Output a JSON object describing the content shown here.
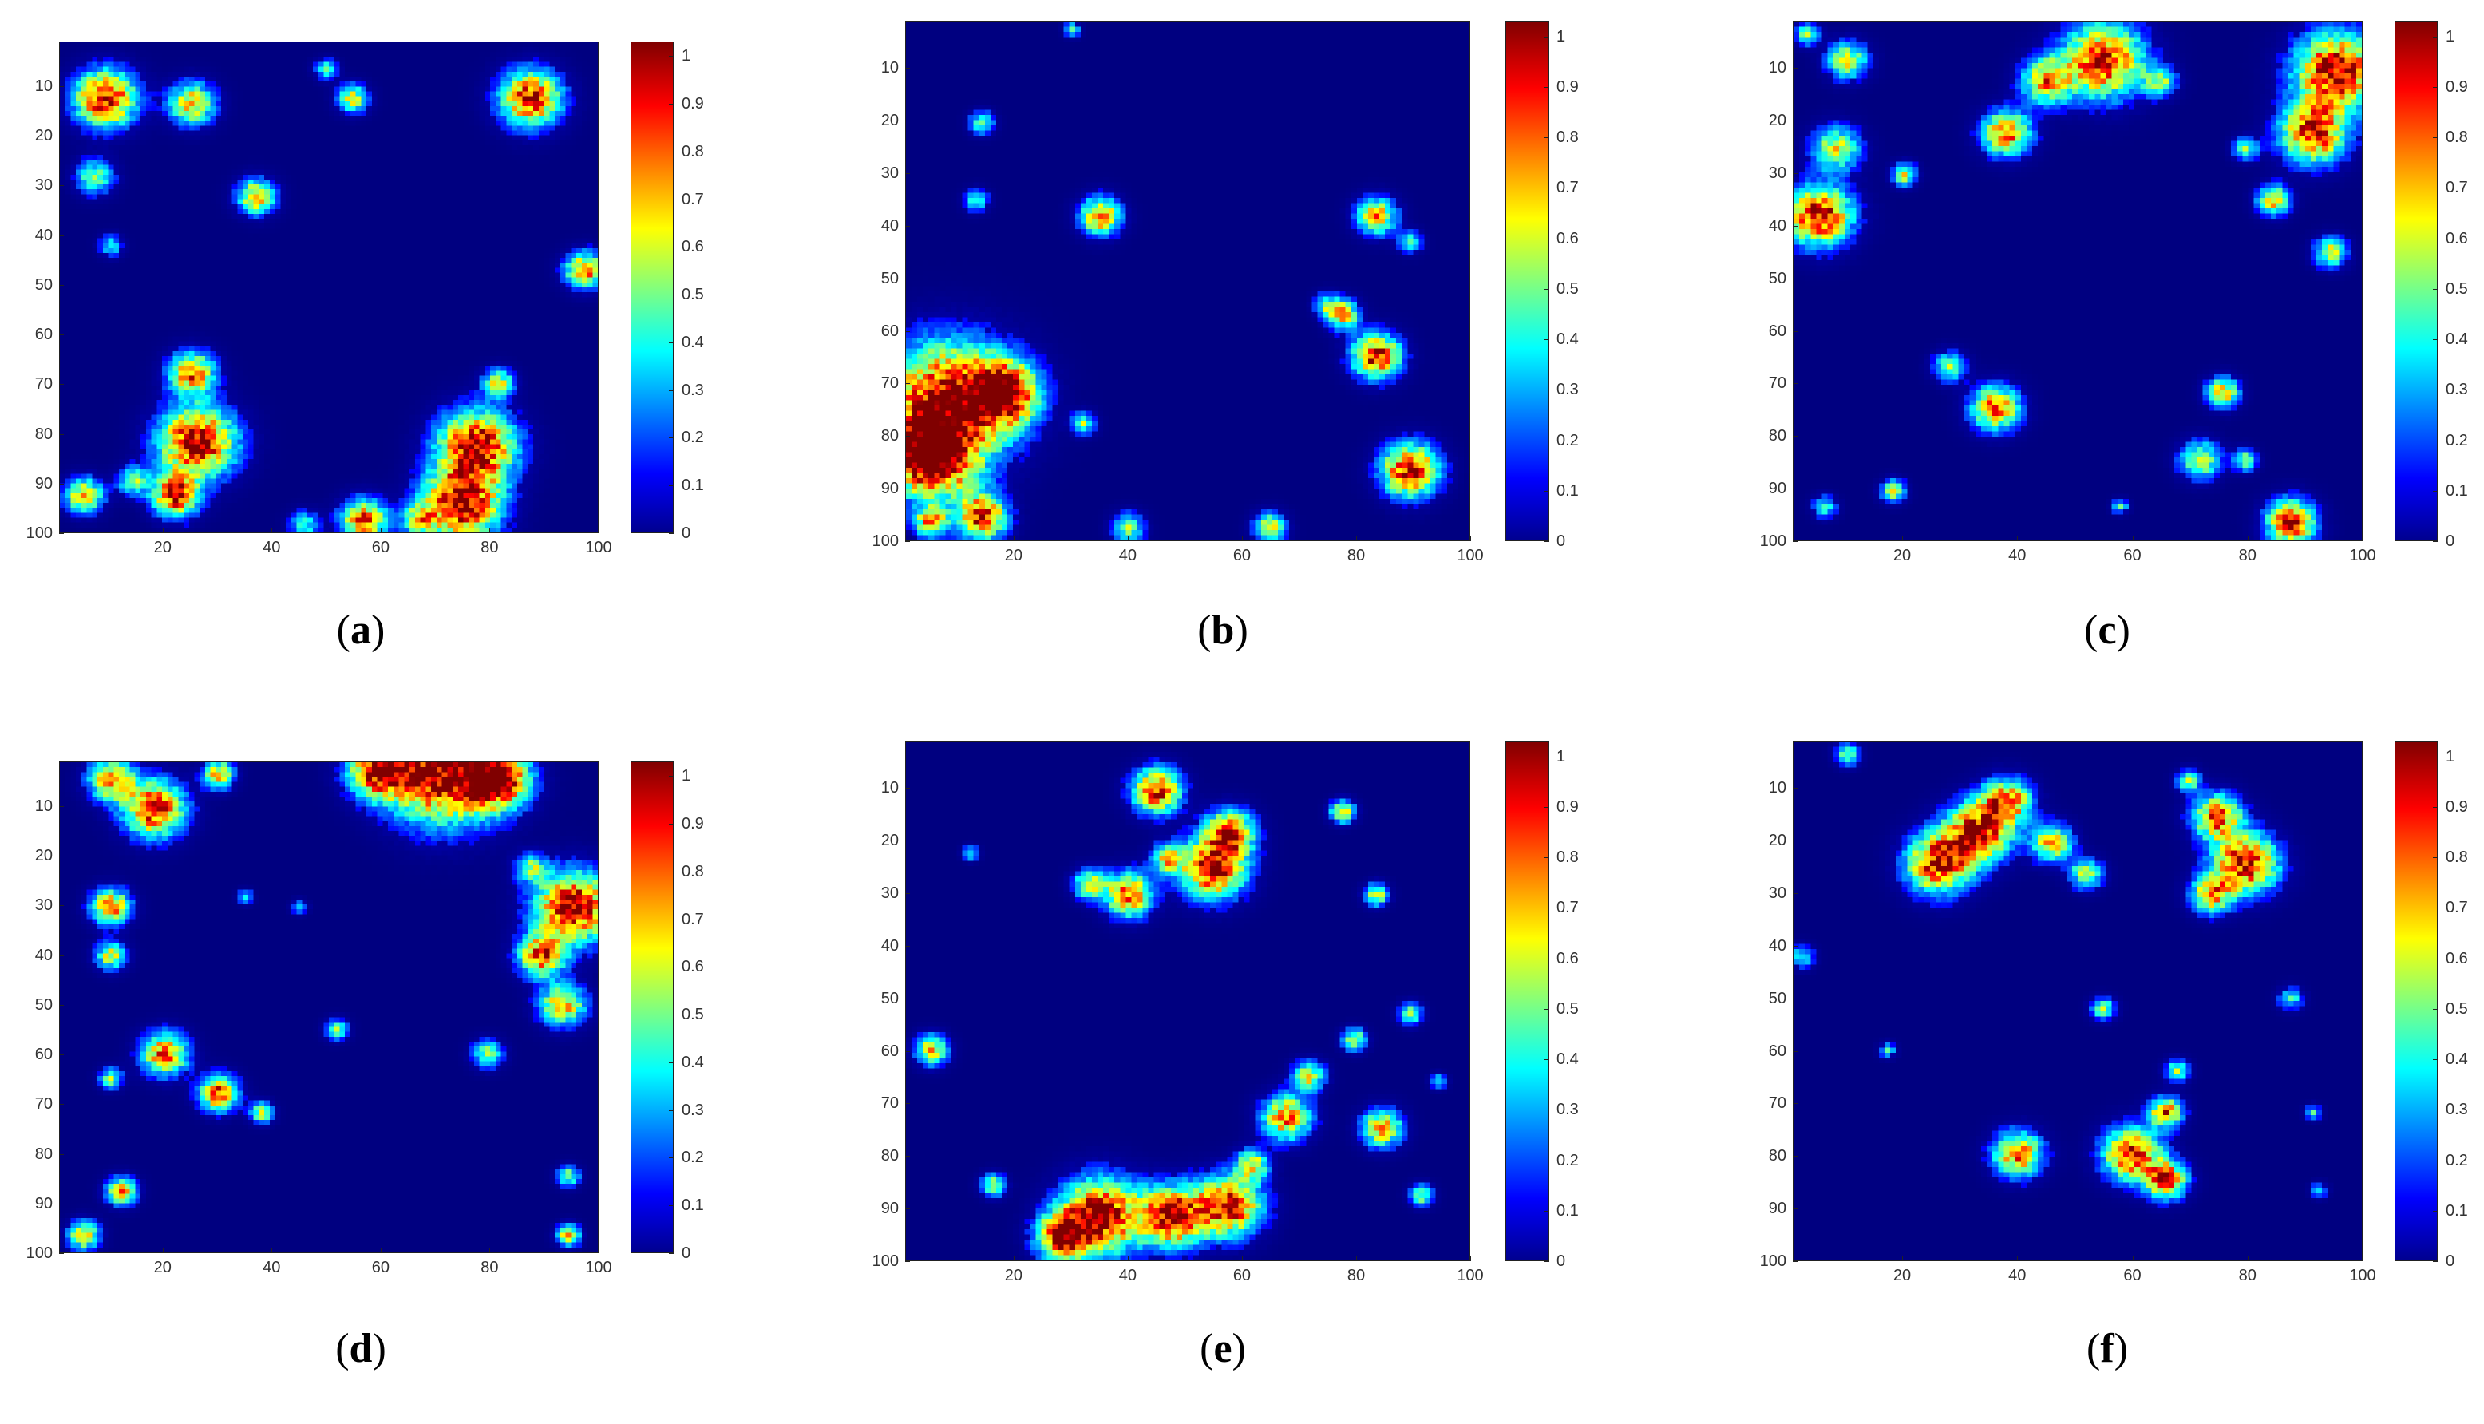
{
  "figure": {
    "chart_data": [
      {
        "type": "heatmap",
        "caption_letter": "a",
        "x_ticks": [
          20,
          40,
          60,
          80,
          100
        ],
        "y_ticks": [
          10,
          20,
          30,
          40,
          50,
          60,
          70,
          80,
          90,
          100
        ],
        "colorbar_ticks": [
          "0",
          "0.1",
          "0.2",
          "0.3",
          "0.4",
          "0.5",
          "0.6",
          "0.7",
          "0.8",
          "0.9",
          "1"
        ],
        "xlim": [
          1,
          100
        ],
        "ylim": [
          1,
          100
        ],
        "clim": [
          0,
          1
        ],
        "colormap": "jet",
        "blobs": [
          [
            9,
            12,
            4,
            0.95
          ],
          [
            25,
            13,
            3,
            0.7
          ],
          [
            7,
            28,
            2.5,
            0.5
          ],
          [
            88,
            12,
            4,
            0.9
          ],
          [
            37,
            32,
            2.5,
            0.7
          ],
          [
            55,
            12,
            2,
            0.6
          ],
          [
            50,
            6,
            1.5,
            0.4
          ],
          [
            98,
            47,
            2.5,
            0.8
          ],
          [
            10,
            42,
            1.5,
            0.4
          ],
          [
            25,
            68,
            3,
            0.8
          ],
          [
            26,
            82,
            5,
            1.0
          ],
          [
            22,
            93,
            3,
            0.9
          ],
          [
            5,
            93,
            2.5,
            0.7
          ],
          [
            14,
            90,
            2,
            0.5
          ],
          [
            78,
            83,
            5,
            1.0
          ],
          [
            75,
            95,
            5,
            1.0
          ],
          [
            82,
            70,
            2,
            0.6
          ],
          [
            57,
            98,
            3,
            0.8
          ],
          [
            67,
            98,
            2,
            0.5
          ],
          [
            46,
            99,
            2,
            0.4
          ]
        ]
      },
      {
        "type": "heatmap",
        "caption_letter": "b",
        "x_ticks": [
          20,
          40,
          60,
          80,
          100
        ],
        "y_ticks": [
          10,
          20,
          30,
          40,
          50,
          60,
          70,
          80,
          90,
          100
        ],
        "colorbar_ticks": [
          "0",
          "0.1",
          "0.2",
          "0.3",
          "0.4",
          "0.5",
          "0.6",
          "0.7",
          "0.8",
          "0.9",
          "1"
        ],
        "xlim": [
          1,
          100
        ],
        "ylim": [
          1,
          100
        ],
        "clim": [
          0,
          1
        ],
        "colormap": "jet",
        "blobs": [
          [
            8,
            74,
            8,
            1.0
          ],
          [
            18,
            72,
            4,
            0.9
          ],
          [
            5,
            85,
            5,
            1.0
          ],
          [
            14,
            96,
            3,
            0.9
          ],
          [
            5,
            97,
            2,
            0.7
          ],
          [
            35,
            38,
            2.5,
            0.8
          ],
          [
            14,
            20,
            1.5,
            0.5
          ],
          [
            13,
            35,
            1.5,
            0.4
          ],
          [
            84,
            38,
            2.5,
            0.7
          ],
          [
            84,
            65,
            3,
            0.9
          ],
          [
            78,
            57,
            2,
            0.7
          ],
          [
            90,
            87,
            3.5,
            0.95
          ],
          [
            32,
            78,
            1.5,
            0.5
          ],
          [
            40,
            98,
            2,
            0.5
          ],
          [
            65,
            98,
            2,
            0.6
          ],
          [
            90,
            43,
            1.5,
            0.4
          ],
          [
            75,
            55,
            1.5,
            0.4
          ],
          [
            30,
            2,
            1,
            0.4
          ]
        ]
      },
      {
        "type": "heatmap",
        "caption_letter": "c",
        "x_ticks": [
          20,
          40,
          60,
          80,
          100
        ],
        "y_ticks": [
          10,
          20,
          30,
          40,
          50,
          60,
          70,
          80,
          90,
          100
        ],
        "colorbar_ticks": [
          "0",
          "0.1",
          "0.2",
          "0.3",
          "0.4",
          "0.5",
          "0.6",
          "0.7",
          "0.8",
          "0.9",
          "1"
        ],
        "xlim": [
          1,
          100
        ],
        "ylim": [
          1,
          100
        ],
        "clim": [
          0,
          1
        ],
        "colormap": "jet",
        "blobs": [
          [
            96,
            10,
            5,
            1.0
          ],
          [
            92,
            22,
            4,
            0.9
          ],
          [
            55,
            8,
            5,
            0.9
          ],
          [
            45,
            12,
            3,
            0.7
          ],
          [
            38,
            22,
            3,
            0.8
          ],
          [
            5,
            38,
            4,
            0.95
          ],
          [
            8,
            25,
            3,
            0.6
          ],
          [
            10,
            8,
            2.5,
            0.6
          ],
          [
            3,
            3,
            1.5,
            0.5
          ],
          [
            20,
            30,
            1.5,
            0.6
          ],
          [
            85,
            35,
            2,
            0.7
          ],
          [
            95,
            45,
            2,
            0.6
          ],
          [
            80,
            25,
            1.5,
            0.5
          ],
          [
            36,
            75,
            3,
            0.8
          ],
          [
            28,
            67,
            2,
            0.5
          ],
          [
            76,
            72,
            2,
            0.7
          ],
          [
            72,
            85,
            2.5,
            0.6
          ],
          [
            80,
            85,
            1.5,
            0.5
          ],
          [
            88,
            97,
            3,
            0.9
          ],
          [
            18,
            91,
            1.5,
            0.6
          ],
          [
            6,
            94,
            1.5,
            0.4
          ],
          [
            58,
            94,
            1,
            0.4
          ],
          [
            65,
            12,
            2,
            0.5
          ]
        ]
      },
      {
        "type": "heatmap",
        "caption_letter": "d",
        "x_ticks": [
          20,
          40,
          60,
          80,
          100
        ],
        "y_ticks": [
          10,
          20,
          30,
          40,
          50,
          60,
          70,
          80,
          90,
          100
        ],
        "colorbar_ticks": [
          "0",
          "0.1",
          "0.2",
          "0.3",
          "0.4",
          "0.5",
          "0.6",
          "0.7",
          "0.8",
          "0.9",
          "1"
        ],
        "xlim": [
          1,
          100
        ],
        "ylim": [
          1,
          100
        ],
        "clim": [
          0,
          1
        ],
        "colormap": "jet",
        "blobs": [
          [
            72,
            3,
            7,
            1.0
          ],
          [
            60,
            2,
            4,
            0.9
          ],
          [
            82,
            4,
            4,
            0.9
          ],
          [
            18,
            10,
            4,
            0.9
          ],
          [
            10,
            4,
            3,
            0.7
          ],
          [
            30,
            3,
            2,
            0.7
          ],
          [
            96,
            30,
            5,
            1.0
          ],
          [
            90,
            40,
            3,
            0.8
          ],
          [
            94,
            50,
            3,
            0.7
          ],
          [
            88,
            22,
            2,
            0.5
          ],
          [
            10,
            30,
            2.5,
            0.8
          ],
          [
            10,
            40,
            2,
            0.6
          ],
          [
            20,
            60,
            3,
            0.8
          ],
          [
            30,
            68,
            2.5,
            0.85
          ],
          [
            38,
            72,
            1.5,
            0.6
          ],
          [
            10,
            65,
            1.5,
            0.5
          ],
          [
            12,
            88,
            2,
            0.7
          ],
          [
            5,
            97,
            2,
            0.7
          ],
          [
            95,
            97,
            1.5,
            0.7
          ],
          [
            95,
            85,
            1.5,
            0.5
          ],
          [
            80,
            60,
            2,
            0.5
          ],
          [
            52,
            55,
            1.5,
            0.5
          ],
          [
            35,
            28,
            1,
            0.4
          ],
          [
            45,
            30,
            1,
            0.4
          ]
        ]
      },
      {
        "type": "heatmap",
        "caption_letter": "e",
        "x_ticks": [
          20,
          40,
          60,
          80,
          100
        ],
        "y_ticks": [
          10,
          20,
          30,
          40,
          50,
          60,
          70,
          80,
          90,
          100
        ],
        "colorbar_ticks": [
          "0",
          "0.1",
          "0.2",
          "0.3",
          "0.4",
          "0.5",
          "0.6",
          "0.7",
          "0.8",
          "0.9",
          "1"
        ],
        "xlim": [
          1,
          100
        ],
        "ylim": [
          1,
          100
        ],
        "clim": [
          0,
          1
        ],
        "colormap": "jet",
        "blobs": [
          [
            45,
            10,
            3,
            0.9
          ],
          [
            55,
            25,
            4,
            0.95
          ],
          [
            58,
            18,
            3,
            0.8
          ],
          [
            40,
            30,
            3,
            0.8
          ],
          [
            33,
            28,
            2,
            0.6
          ],
          [
            47,
            23,
            2,
            0.6
          ],
          [
            78,
            14,
            1.5,
            0.7
          ],
          [
            84,
            30,
            1.5,
            0.6
          ],
          [
            35,
            92,
            5,
            1.0
          ],
          [
            48,
            92,
            4,
            0.95
          ],
          [
            58,
            90,
            4,
            0.9
          ],
          [
            28,
            96,
            3,
            0.9
          ],
          [
            68,
            73,
            3,
            0.8
          ],
          [
            62,
            82,
            2,
            0.6
          ],
          [
            72,
            65,
            2,
            0.6
          ],
          [
            85,
            75,
            2.5,
            0.75
          ],
          [
            90,
            53,
            1.5,
            0.5
          ],
          [
            80,
            58,
            1.5,
            0.6
          ],
          [
            5,
            60,
            2,
            0.7
          ],
          [
            16,
            86,
            1.5,
            0.6
          ],
          [
            92,
            88,
            1.5,
            0.5
          ],
          [
            12,
            22,
            1,
            0.4
          ],
          [
            95,
            66,
            1,
            0.4
          ]
        ]
      },
      {
        "type": "heatmap",
        "caption_letter": "f",
        "x_ticks": [
          20,
          40,
          60,
          80,
          100
        ],
        "y_ticks": [
          10,
          20,
          30,
          40,
          50,
          60,
          70,
          80,
          90,
          100
        ],
        "colorbar_ticks": [
          "0",
          "0.1",
          "0.2",
          "0.3",
          "0.4",
          "0.5",
          "0.6",
          "0.7",
          "0.8",
          "0.9",
          "1"
        ],
        "xlim": [
          1,
          100
        ],
        "ylim": [
          1,
          100
        ],
        "clim": [
          0,
          1
        ],
        "colormap": "jet",
        "blobs": [
          [
            33,
            18,
            4,
            0.9
          ],
          [
            26,
            24,
            4,
            0.9
          ],
          [
            38,
            12,
            3,
            0.8
          ],
          [
            46,
            20,
            2.5,
            0.7
          ],
          [
            52,
            26,
            2,
            0.6
          ],
          [
            75,
            15,
            3,
            0.8
          ],
          [
            80,
            24,
            4,
            0.95
          ],
          [
            74,
            30,
            2.5,
            0.7
          ],
          [
            70,
            8,
            1.5,
            0.5
          ],
          [
            10,
            3,
            1.5,
            0.5
          ],
          [
            40,
            80,
            3,
            0.8
          ],
          [
            60,
            80,
            3.5,
            0.9
          ],
          [
            66,
            85,
            2.5,
            0.9
          ],
          [
            66,
            72,
            2,
            0.8
          ],
          [
            68,
            64,
            1.5,
            0.5
          ],
          [
            55,
            52,
            1.5,
            0.5
          ],
          [
            17,
            60,
            1,
            0.4
          ],
          [
            92,
            72,
            1,
            0.4
          ],
          [
            88,
            50,
            1.5,
            0.4
          ],
          [
            2,
            42,
            1.5,
            0.4
          ],
          [
            93,
            87,
            1,
            0.4
          ]
        ]
      }
    ]
  }
}
